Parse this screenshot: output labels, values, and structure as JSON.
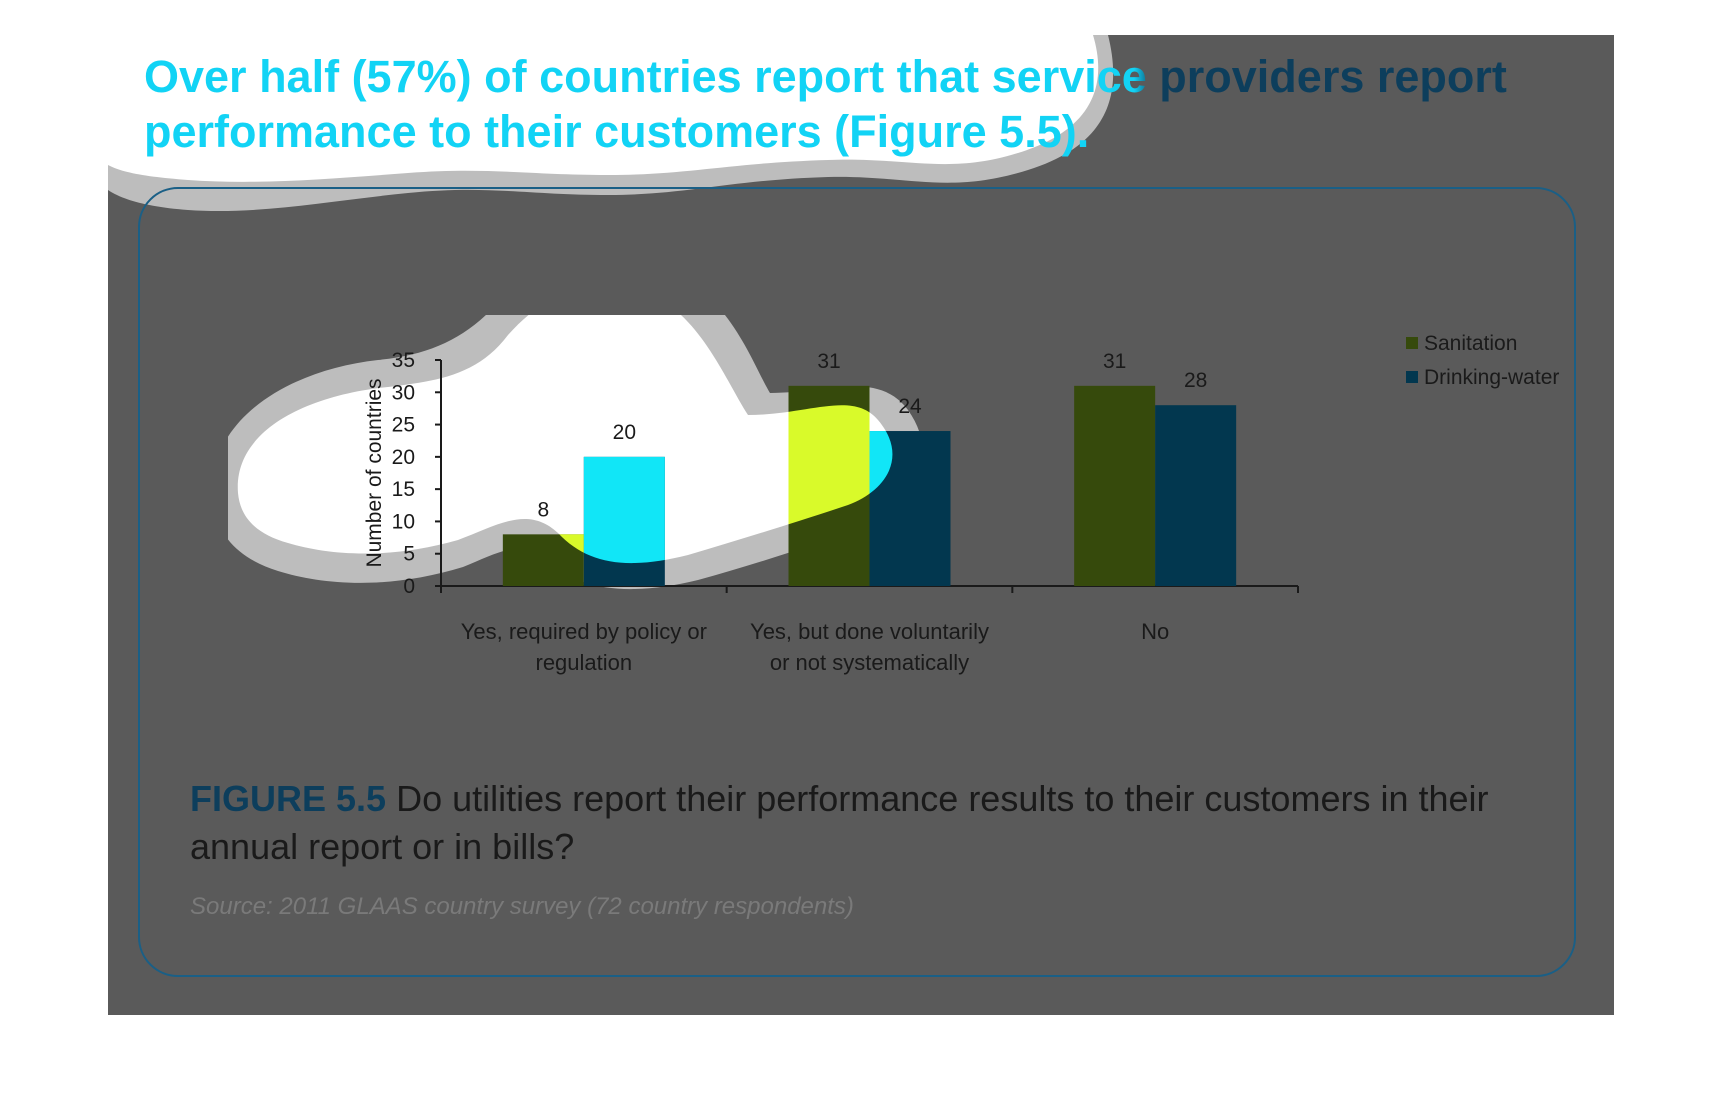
{
  "headline": "Over half (57%) of countries report that service providers report performance to their customers (Figure 5.5).",
  "caption": {
    "label": "FIGURE 5.5",
    "text": "Do utilities report their performance results to their customers in their annual report or in bills?"
  },
  "source": "Source: 2011 GLAAS country survey (72 country respondents)",
  "colors": {
    "sanitation": "#364a0c",
    "drinking_water": "#02374f",
    "sanitation_highlight": "#d9fa2a",
    "drinking_water_highlight": "#11e6f7",
    "headline": "#12d3f5",
    "caption_label": "#0d3e5c"
  },
  "chart_data": {
    "type": "bar",
    "title": "",
    "xlabel": "",
    "ylabel": "Number of countries",
    "ylim": [
      0,
      35
    ],
    "yticks": [
      0,
      5,
      10,
      15,
      20,
      25,
      30,
      35
    ],
    "categories": [
      [
        "Yes, required by policy or",
        "regulation"
      ],
      [
        "Yes, but done voluntarily",
        "or not systematically"
      ],
      [
        "No"
      ]
    ],
    "series": [
      {
        "name": "Sanitation",
        "values": [
          8,
          31,
          31
        ]
      },
      {
        "name": "Drinking-water",
        "values": [
          20,
          24,
          28
        ]
      }
    ],
    "legend_position": "top-right",
    "data_labels": true,
    "grid": false
  }
}
